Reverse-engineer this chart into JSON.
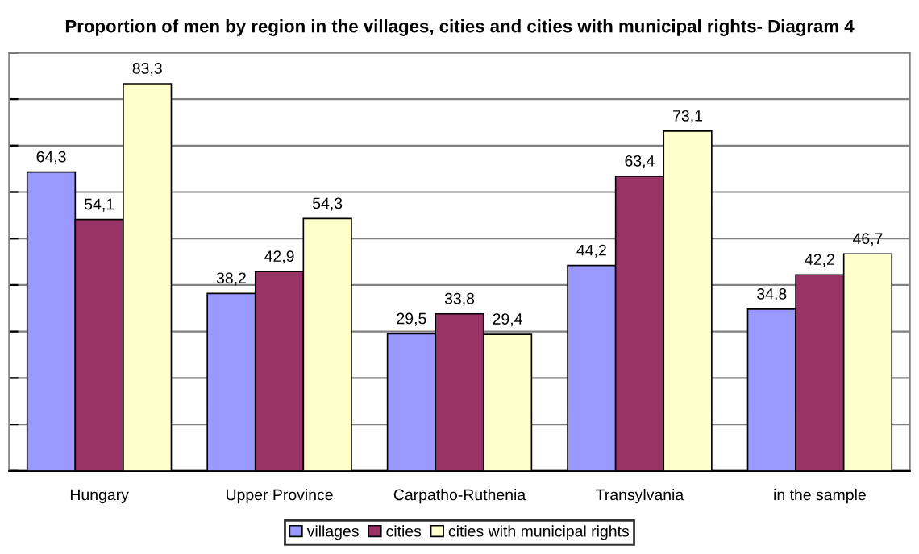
{
  "chart_data": {
    "type": "bar",
    "title": "Proportion of men by region in the villages, cities and cities with municipal rights- Diagram 4",
    "categories": [
      "Hungary",
      "Upper Province",
      "Carpatho-Ruthenia",
      "Transylvania",
      "in the sample"
    ],
    "series": [
      {
        "name": "villages",
        "color": "#9999ff",
        "values": [
          64.3,
          38.2,
          29.5,
          44.2,
          34.8
        ],
        "value_labels": [
          "64,3",
          "38,2",
          "29,5",
          "44,2",
          "34,8"
        ]
      },
      {
        "name": "cities",
        "color": "#993366",
        "values": [
          54.1,
          42.9,
          33.8,
          63.4,
          42.2
        ],
        "value_labels": [
          "54,1",
          "42,9",
          "33,8",
          "63,4",
          "42,2"
        ]
      },
      {
        "name": "cities with municipal rights",
        "color": "#ffffcc",
        "values": [
          83.3,
          54.3,
          29.4,
          73.1,
          46.7
        ],
        "value_labels": [
          "83,3",
          "54,3",
          "29,4",
          "73,1",
          "46,7"
        ]
      }
    ],
    "ylim": [
      0,
      90
    ],
    "yticks": [
      {
        "value": 0,
        "label": null
      },
      {
        "value": 10,
        "label": null
      },
      {
        "value": 20,
        "label": null
      },
      {
        "value": 30,
        "label": null
      },
      {
        "value": 40,
        "label": null
      },
      {
        "value": 50,
        "label": null
      },
      {
        "value": 60,
        "label": null
      },
      {
        "value": 70,
        "label": null
      },
      {
        "value": 80,
        "label": null
      },
      {
        "value": 90,
        "label": null
      }
    ],
    "tick_labels": "x",
    "grid": "y",
    "legend": "bottom"
  }
}
